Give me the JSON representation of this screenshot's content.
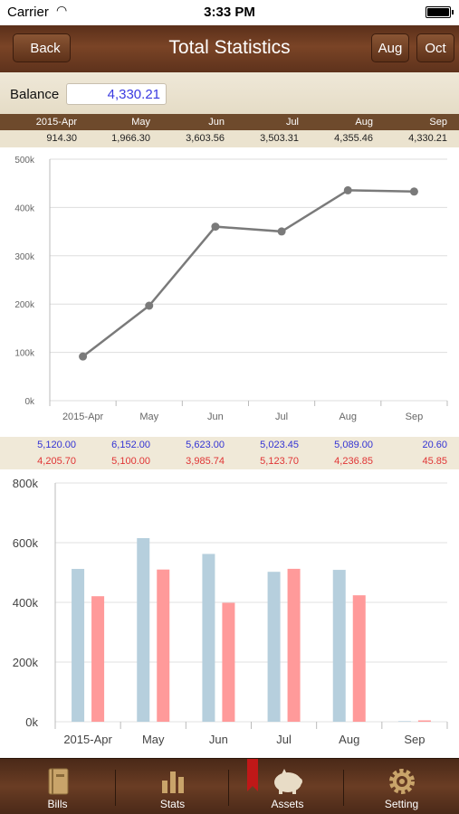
{
  "status": {
    "carrier": "Carrier",
    "time": "3:33 PM"
  },
  "nav": {
    "back": "Back",
    "title": "Total Statistics",
    "prev": "Aug",
    "next": "Oct"
  },
  "balance": {
    "label": "Balance",
    "value": "4,330.21"
  },
  "months": [
    "2015-Apr",
    "May",
    "Jun",
    "Jul",
    "Aug",
    "Sep"
  ],
  "monthly_balance": [
    "914.30",
    "1,966.30",
    "3,603.56",
    "3,503.31",
    "4,355.46",
    "4,330.21"
  ],
  "income": [
    "5,120.00",
    "6,152.00",
    "5,623.00",
    "5,023.45",
    "5,089.00",
    "20.60"
  ],
  "expense": [
    "4,205.70",
    "5,100.00",
    "3,985.74",
    "5,123.70",
    "4,236.85",
    "45.85"
  ],
  "chart_data": [
    {
      "type": "line",
      "categories": [
        "2015-Apr",
        "May",
        "Jun",
        "Jul",
        "Aug",
        "Sep"
      ],
      "series": [
        {
          "values": [
            91430,
            196630,
            360356,
            350331,
            435546,
            433021
          ],
          "color": "#7a7a7a"
        }
      ],
      "ylim": [
        0,
        500000
      ],
      "yticks": [
        "0k",
        "100k",
        "200k",
        "300k",
        "400k",
        "500k"
      ],
      "grid": true
    },
    {
      "type": "bar",
      "categories": [
        "2015-Apr",
        "May",
        "Jun",
        "Jul",
        "Aug",
        "Sep"
      ],
      "series": [
        {
          "values": [
            512000,
            615200,
            562300,
            502345,
            508900,
            2060
          ],
          "color": "#b6cfdd"
        },
        {
          "values": [
            420570,
            510000,
            398574,
            512370,
            423685,
            4585
          ],
          "color": "#ff9a9a"
        }
      ],
      "ylim": [
        0,
        800000
      ],
      "yticks": [
        "0k",
        "200k",
        "400k",
        "600k",
        "800k"
      ],
      "grid": true
    }
  ],
  "tabs": [
    {
      "label": "Bills"
    },
    {
      "label": "Stats"
    },
    {
      "label": "Assets"
    },
    {
      "label": "Setting"
    }
  ]
}
